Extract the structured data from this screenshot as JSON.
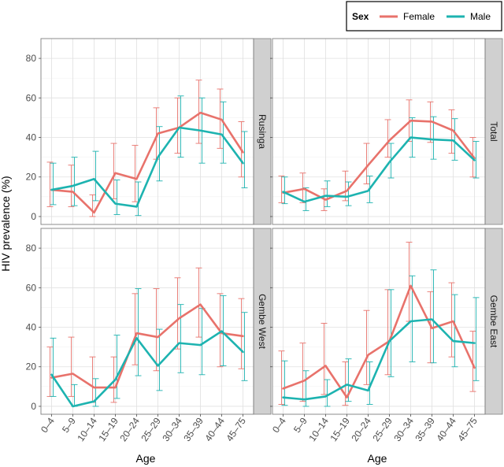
{
  "chart_data": {
    "type": "line",
    "ylabel": "HIV prevalence (%)",
    "xlabel": "Age",
    "ylim": [
      -4,
      90
    ],
    "yticks": [
      0,
      20,
      40,
      60,
      80
    ],
    "categories": [
      "0–4",
      "5–9",
      "10–14",
      "15–19",
      "20–24",
      "25–29",
      "30–34",
      "35–39",
      "40–44",
      "45–75"
    ],
    "legend": {
      "title": "Sex",
      "position": "top-right",
      "entries": [
        {
          "name": "Female",
          "color": "#e8726b"
        },
        {
          "name": "Male",
          "color": "#1db3b0"
        }
      ]
    },
    "panels": [
      {
        "label": "Rusinga",
        "series": [
          {
            "name": "Female",
            "values": [
              13.5,
              12.5,
              2,
              22,
              19,
              42,
              45,
              52.5,
              49,
              32.5
            ],
            "lower": [
              5,
              5,
              0,
              9,
              7.5,
              29,
              32,
              37,
              34.5,
              20
            ],
            "upper": [
              27.5,
              26,
              11,
              37,
              36,
              55,
              60,
              69,
              64.5,
              48
            ]
          },
          {
            "name": "Male",
            "values": [
              13.5,
              15.5,
              19,
              6.5,
              5,
              30,
              45,
              43.5,
              41.5,
              27
            ],
            "lower": [
              6,
              5.5,
              8,
              1,
              0.5,
              18,
              30,
              27,
              27,
              14.5
            ],
            "upper": [
              27,
              30,
              33,
              18.5,
              17.5,
              45.5,
              61,
              60,
              58,
              43
            ]
          }
        ]
      },
      {
        "label": "Total",
        "series": [
          {
            "name": "Female",
            "values": [
              12,
              14,
              8.5,
              13,
              26,
              38.5,
              48.5,
              48,
              43.5,
              29.5
            ],
            "lower": [
              7,
              7,
              3,
              8,
              16.5,
              30,
              38,
              37.5,
              32,
              20
            ],
            "upper": [
              20.5,
              22,
              14,
              23,
              37,
              49,
              59,
              58,
              54,
              40
            ]
          },
          {
            "name": "Male",
            "values": [
              12.5,
              7.5,
              10.5,
              10,
              13,
              27.5,
              40,
              39,
              38.5,
              28.5
            ],
            "lower": [
              6.5,
              3,
              5,
              5.5,
              7,
              19.5,
              30,
              29,
              28.5,
              19.5
            ],
            "upper": [
              20,
              14.5,
              18,
              17.5,
              20.5,
              37,
              50,
              50.5,
              49.5,
              38
            ]
          }
        ]
      },
      {
        "label": "Gembe West",
        "series": [
          {
            "name": "Female",
            "values": [
              14.5,
              16.5,
              9.5,
              9.5,
              37,
              35,
              44.5,
              51.5,
              37,
              35.5
            ],
            "lower": [
              5,
              5,
              2,
              2,
              21,
              18,
              29,
              35,
              20,
              19
            ],
            "upper": [
              30,
              35,
              25,
              25,
              57,
              59.5,
              65,
              70,
              57,
              54.5
            ]
          },
          {
            "name": "Male",
            "values": [
              16,
              0,
              2.5,
              13.5,
              34.5,
              20.5,
              32,
              31,
              38,
              27.5
            ],
            "lower": [
              5,
              0,
              0,
              4,
              15.5,
              8,
              17,
              16,
              20.5,
              13
            ],
            "upper": [
              34.5,
              11,
              14,
              36,
              59.5,
              39,
              51.5,
              49.5,
              56,
              47.5
            ]
          }
        ]
      },
      {
        "label": "Gembe East",
        "series": [
          {
            "name": "Female",
            "values": [
              9,
              13,
              20.5,
              4.5,
              26,
              33,
              61,
              39.5,
              43,
              19.5
            ],
            "lower": [
              1,
              2.5,
              6,
              0.5,
              11,
              16,
              43,
              22,
              25,
              7.5
            ],
            "upper": [
              28,
              32,
              42,
              22.5,
              48.5,
              59,
              83,
              58,
              62.5,
              38
            ]
          },
          {
            "name": "Male",
            "values": [
              4.5,
              3.5,
              5,
              11,
              8,
              33,
              43,
              44,
              33,
              32
            ],
            "lower": [
              0.5,
              0,
              0,
              2.5,
              1,
              15,
              22.5,
              22,
              20,
              13
            ],
            "upper": [
              23,
              18,
              13.5,
              24,
              22.5,
              59,
              66,
              69,
              56.5,
              55
            ]
          }
        ]
      }
    ]
  }
}
